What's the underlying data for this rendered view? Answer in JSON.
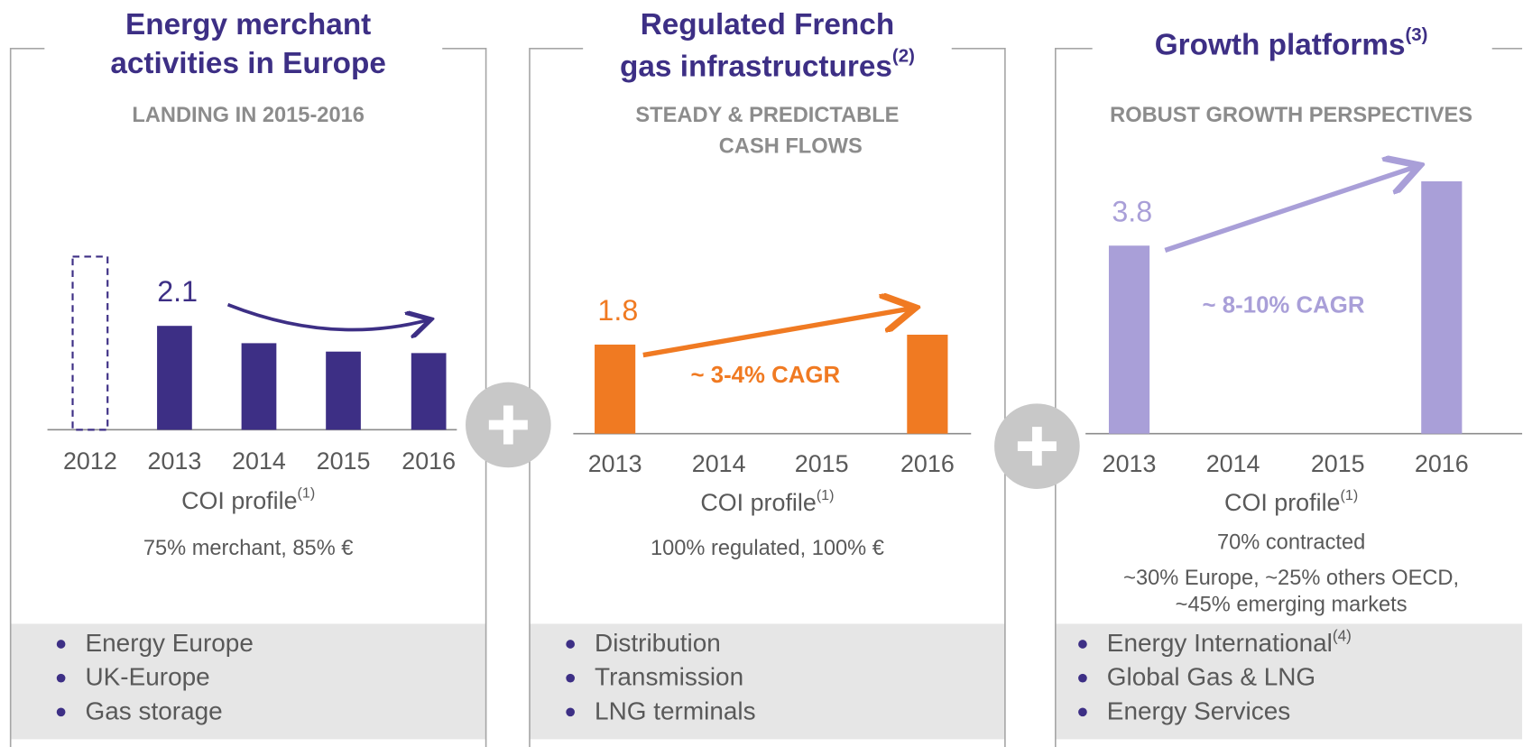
{
  "chart_data": [
    {
      "type": "bar",
      "title_lines": [
        "Energy merchant",
        "activities in Europe"
      ],
      "subtitle_lines": [
        "LANDING IN 2015-2016"
      ],
      "categories": [
        "2012",
        "2013",
        "2014",
        "2015",
        "2016"
      ],
      "values": [
        3.5,
        2.1,
        1.75,
        1.58,
        1.55
      ],
      "value_labels": [
        null,
        "2.1",
        null,
        null,
        null
      ],
      "bar_styles": [
        "dashed",
        "solid",
        "solid",
        "solid",
        "solid"
      ],
      "color": "#3d2f85",
      "x_label": "COI profile",
      "x_label_note": "(1)",
      "notes": [
        "75% merchant, 85% €"
      ],
      "bullets": [
        {
          "text": "Energy Europe"
        },
        {
          "text": "UK-Europe"
        },
        {
          "text": "Gas storage"
        }
      ]
    },
    {
      "type": "bar",
      "title_lines": [
        "Regulated French",
        "gas infrastructures"
      ],
      "title_note": "(2)",
      "subtitle_lines": [
        "STEADY & PREDICTABLE",
        "CASH FLOWS"
      ],
      "categories": [
        "2013",
        "2014",
        "2015",
        "2016"
      ],
      "values": [
        1.8,
        null,
        null,
        2.0
      ],
      "value_labels": [
        "1.8",
        null,
        null,
        null
      ],
      "color": "#f07a22",
      "annotation": "~ 3-4%  CAGR",
      "x_label": "COI profile",
      "x_label_note": "(1)",
      "notes": [
        "100% regulated, 100% €"
      ],
      "bullets": [
        {
          "text": "Distribution"
        },
        {
          "text": "Transmission"
        },
        {
          "text": "LNG terminals"
        }
      ]
    },
    {
      "type": "bar",
      "title_lines": [
        "Growth platforms"
      ],
      "title_note": "(3)",
      "subtitle_lines": [
        "ROBUST GROWTH PERSPECTIVES"
      ],
      "categories": [
        "2013",
        "2014",
        "2015",
        "2016"
      ],
      "values": [
        3.8,
        null,
        null,
        5.1
      ],
      "value_labels": [
        "3.8",
        null,
        null,
        null
      ],
      "color": "#a99fd8",
      "annotation": "~ 8-10%  CAGR",
      "x_label": "COI profile",
      "x_label_note": "(1)",
      "notes": [
        "70% contracted",
        "~30% Europe, ~25% others OECD,",
        "~45% emerging markets"
      ],
      "bullets": [
        {
          "text": "Energy International",
          "note": "(4)"
        },
        {
          "text": "Global Gas & LNG"
        },
        {
          "text": "Energy Services"
        }
      ]
    }
  ]
}
